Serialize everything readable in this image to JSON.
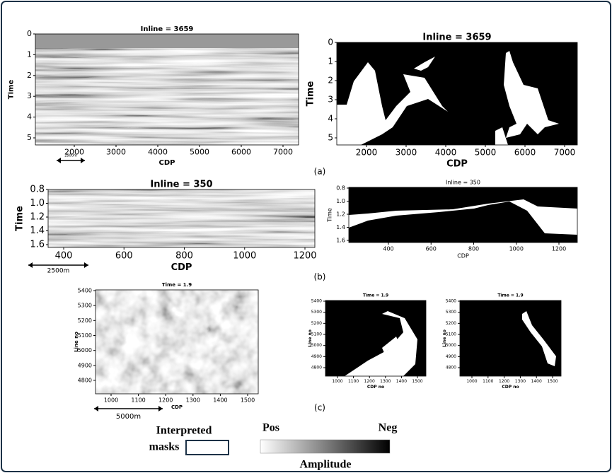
{
  "panels": [
    {
      "title": "Inline = 3659",
      "xlabel": "CDP",
      "ylabel": "Time",
      "xticks": [
        "2000",
        "3000",
        "4000",
        "5000",
        "6000",
        "7000"
      ],
      "yticks": [
        "0",
        "1",
        "2",
        "3",
        "4",
        "5"
      ],
      "scale_bar": "2500m"
    },
    {
      "title": "Inline = 3659",
      "xlabel": "CDP",
      "ylabel": "Time",
      "xticks": [
        "2000",
        "3000",
        "4000",
        "5000",
        "6000",
        "7000"
      ],
      "yticks": [
        "0",
        "1",
        "2",
        "3",
        "4",
        "5"
      ]
    },
    {
      "title": "Inline = 350",
      "xlabel": "CDP",
      "ylabel": "Time",
      "xticks": [
        "400",
        "600",
        "800",
        "1000",
        "1200"
      ],
      "yticks": [
        "0.8",
        "1.0",
        "1.2",
        "1.4",
        "1.6"
      ],
      "scale_bar": "2500m"
    },
    {
      "title": "Inline = 350",
      "xlabel": "CDP",
      "ylabel": "Time",
      "xticks": [
        "400",
        "600",
        "800",
        "1000",
        "1200"
      ],
      "yticks": [
        "0.8",
        "1.0",
        "1.2",
        "1.4",
        "1.6"
      ]
    },
    {
      "title": "Time = 1.9",
      "xlabel": "CDP",
      "ylabel": "Line no",
      "xticks": [
        "1000",
        "1100",
        "1200",
        "1300",
        "1400",
        "1500"
      ],
      "yticks": [
        "5400",
        "5300",
        "5200",
        "5100",
        "5000",
        "4900",
        "4800"
      ],
      "scale_bar": "5000m"
    },
    {
      "title": "Time = 1.9",
      "xlabel": "CDP no",
      "ylabel": "Line no",
      "xticks": [
        "1000",
        "1100",
        "1200",
        "1300",
        "1400",
        "1500"
      ],
      "yticks": [
        "5400",
        "5300",
        "5200",
        "5100",
        "5000",
        "4900",
        "4800"
      ]
    },
    {
      "title": "Time = 1.9",
      "xlabel": "CDP no",
      "ylabel": "Line no",
      "xticks": [
        "1000",
        "1100",
        "1200",
        "1300",
        "1400",
        "1500"
      ],
      "yticks": [
        "5400",
        "5300",
        "5200",
        "5100",
        "5000",
        "4900",
        "4800"
      ]
    }
  ],
  "captions": [
    "(a)",
    "(b)",
    "(c)"
  ],
  "legend": {
    "masks_line1": "Interpreted",
    "masks_line2": "masks",
    "pos": "Pos",
    "neg": "Neg",
    "amplitude": "Amplitude"
  }
}
